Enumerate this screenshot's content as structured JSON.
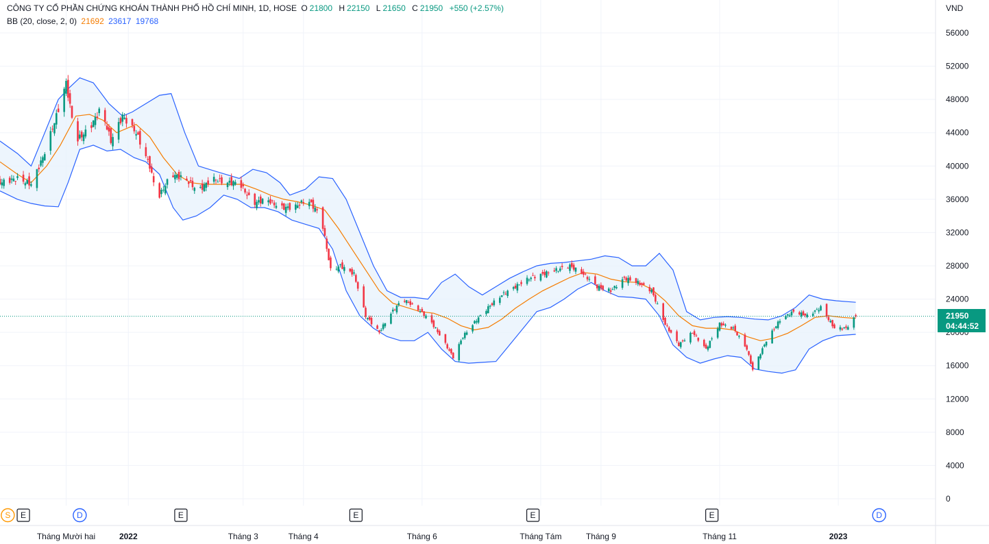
{
  "header": {
    "symbol_title": "CÔNG TY CỔ PHẦN CHỨNG KHOÁN THÀNH PHỐ HỒ CHÍ MINH, 1D, HOSE",
    "o_label": "O",
    "o_value": "21800",
    "h_label": "H",
    "h_value": "22150",
    "l_label": "L",
    "l_value": "21650",
    "c_label": "C",
    "c_value": "21950",
    "change": "+550 (+2.57%)"
  },
  "indicator": {
    "name": "BB (20, close, 2, 0)",
    "basis": "21692",
    "upper": "23617",
    "lower": "19768"
  },
  "price_scale": {
    "currency": "VND"
  },
  "last_price": {
    "price": "21950",
    "countdown": "04:44:52"
  },
  "colors": {
    "up": "#089981",
    "down": "#f23645",
    "basis": "#f57c00",
    "bands": "#2962ff",
    "band_fill": "#e8f3fd",
    "grid": "#f0f3fa",
    "event_earnings": "#131722",
    "event_dividend": "#2962ff",
    "event_split": "#ff9800"
  },
  "chart_data": {
    "type": "candlestick",
    "title": "CÔNG TY CỔ PHẦN CHỨNG KHOÁN THÀNH PHỐ HỒ CHÍ MINH, 1D, HOSE",
    "ylim": [
      0,
      57500
    ],
    "yticks": [
      0,
      4000,
      8000,
      12000,
      16000,
      20000,
      24000,
      28000,
      32000,
      36000,
      40000,
      44000,
      48000,
      52000,
      56000
    ],
    "grid": true,
    "x_range": [
      "2021-10-27",
      "2023-02-20"
    ],
    "time_labels": [
      {
        "date": "2021-11-30",
        "text": "Tháng Mười hai",
        "bold": false
      },
      {
        "date": "2022-01-01",
        "text": "2022",
        "bold": true
      },
      {
        "date": "2022-03-01",
        "text": "Tháng 3",
        "bold": false
      },
      {
        "date": "2022-04-01",
        "text": "Tháng 4",
        "bold": false
      },
      {
        "date": "2022-06-01",
        "text": "Tháng 6",
        "bold": false
      },
      {
        "date": "2022-08-01",
        "text": "Tháng Tám",
        "bold": false
      },
      {
        "date": "2022-09-01",
        "text": "Tháng 9",
        "bold": false
      },
      {
        "date": "2022-11-01",
        "text": "Tháng 11",
        "bold": false
      },
      {
        "date": "2023-01-01",
        "text": "2023",
        "bold": true
      }
    ],
    "close_series": {
      "name": "Close",
      "points": [
        [
          "2021-10-27",
          38000
        ],
        [
          "2021-11-05",
          38500
        ],
        [
          "2021-11-12",
          37800
        ],
        [
          "2021-11-18",
          41000
        ],
        [
          "2021-11-25",
          46000
        ],
        [
          "2021-11-30",
          50000
        ],
        [
          "2021-12-05",
          43000
        ],
        [
          "2021-12-12",
          44500
        ],
        [
          "2021-12-18",
          47000
        ],
        [
          "2021-12-23",
          43000
        ],
        [
          "2021-12-29",
          46000
        ],
        [
          "2022-01-05",
          44000
        ],
        [
          "2022-01-12",
          40000
        ],
        [
          "2022-01-16",
          36000
        ],
        [
          "2022-01-23",
          39000
        ],
        [
          "2022-01-30",
          38500
        ],
        [
          "2022-02-06",
          37000
        ],
        [
          "2022-02-13",
          38500
        ],
        [
          "2022-02-20",
          38000
        ],
        [
          "2022-02-27",
          38000
        ],
        [
          "2022-03-06",
          35500
        ],
        [
          "2022-03-13",
          36000
        ],
        [
          "2022-03-20",
          35000
        ],
        [
          "2022-03-27",
          35000
        ],
        [
          "2022-04-03",
          36000
        ],
        [
          "2022-04-10",
          34000
        ],
        [
          "2022-04-15",
          27500
        ],
        [
          "2022-04-20",
          28000
        ],
        [
          "2022-04-27",
          27000
        ],
        [
          "2022-05-03",
          22000
        ],
        [
          "2022-05-10",
          20000
        ],
        [
          "2022-05-15",
          22000
        ],
        [
          "2022-05-22",
          24000
        ],
        [
          "2022-05-29",
          23000
        ],
        [
          "2022-06-05",
          21500
        ],
        [
          "2022-06-12",
          19000
        ],
        [
          "2022-06-17",
          17000
        ],
        [
          "2022-06-22",
          19500
        ],
        [
          "2022-06-29",
          21500
        ],
        [
          "2022-07-05",
          23000
        ],
        [
          "2022-07-12",
          24500
        ],
        [
          "2022-07-19",
          25500
        ],
        [
          "2022-07-26",
          26500
        ],
        [
          "2022-08-02",
          27000
        ],
        [
          "2022-08-09",
          27500
        ],
        [
          "2022-08-16",
          28000
        ],
        [
          "2022-08-23",
          27000
        ],
        [
          "2022-08-30",
          25500
        ],
        [
          "2022-09-06",
          25000
        ],
        [
          "2022-09-13",
          26500
        ],
        [
          "2022-09-20",
          26000
        ],
        [
          "2022-09-27",
          25000
        ],
        [
          "2022-10-04",
          21000
        ],
        [
          "2022-10-11",
          18500
        ],
        [
          "2022-10-18",
          20000
        ],
        [
          "2022-10-25",
          18000
        ],
        [
          "2022-11-01",
          21000
        ],
        [
          "2022-11-08",
          20500
        ],
        [
          "2022-11-15",
          18000
        ],
        [
          "2022-11-18",
          15500
        ],
        [
          "2022-11-25",
          19000
        ],
        [
          "2022-12-02",
          21500
        ],
        [
          "2022-12-09",
          22500
        ],
        [
          "2022-12-16",
          22000
        ],
        [
          "2022-12-23",
          23000
        ],
        [
          "2022-12-30",
          20500
        ],
        [
          "2023-01-05",
          20500
        ],
        [
          "2023-01-10",
          21950
        ]
      ]
    },
    "basis_series": {
      "name": "BB basis",
      "points": [
        [
          "2021-10-27",
          40500
        ],
        [
          "2021-11-05",
          39000
        ],
        [
          "2021-11-12",
          38000
        ],
        [
          "2021-11-20",
          40000
        ],
        [
          "2021-11-27",
          42500
        ],
        [
          "2021-12-05",
          46000
        ],
        [
          "2021-12-12",
          46200
        ],
        [
          "2021-12-19",
          45500
        ],
        [
          "2021-12-26",
          44000
        ],
        [
          "2022-01-05",
          45000
        ],
        [
          "2022-01-12",
          43500
        ],
        [
          "2022-01-19",
          41000
        ],
        [
          "2022-01-26",
          39000
        ],
        [
          "2022-02-02",
          38000
        ],
        [
          "2022-02-09",
          37800
        ],
        [
          "2022-02-16",
          37800
        ],
        [
          "2022-03-01",
          37800
        ],
        [
          "2022-03-08",
          37200
        ],
        [
          "2022-03-15",
          36500
        ],
        [
          "2022-03-22",
          36000
        ],
        [
          "2022-03-29",
          35700
        ],
        [
          "2022-04-05",
          35300
        ],
        [
          "2022-04-12",
          34700
        ],
        [
          "2022-04-19",
          32500
        ],
        [
          "2022-04-26",
          30000
        ],
        [
          "2022-05-03",
          27500
        ],
        [
          "2022-05-10",
          25000
        ],
        [
          "2022-05-17",
          23500
        ],
        [
          "2022-05-24",
          23000
        ],
        [
          "2022-05-31",
          22500
        ],
        [
          "2022-06-07",
          22300
        ],
        [
          "2022-06-14",
          21700
        ],
        [
          "2022-06-21",
          20800
        ],
        [
          "2022-06-28",
          20300
        ],
        [
          "2022-07-05",
          20600
        ],
        [
          "2022-07-12",
          21600
        ],
        [
          "2022-07-19",
          22900
        ],
        [
          "2022-07-26",
          24000
        ],
        [
          "2022-08-02",
          25000
        ],
        [
          "2022-08-09",
          25800
        ],
        [
          "2022-08-16",
          26600
        ],
        [
          "2022-08-23",
          27200
        ],
        [
          "2022-08-30",
          27000
        ],
        [
          "2022-09-06",
          26400
        ],
        [
          "2022-09-13",
          26100
        ],
        [
          "2022-09-20",
          26000
        ],
        [
          "2022-09-27",
          25200
        ],
        [
          "2022-10-04",
          23800
        ],
        [
          "2022-10-11",
          22000
        ],
        [
          "2022-10-18",
          20800
        ],
        [
          "2022-10-25",
          20500
        ],
        [
          "2022-11-01",
          20500
        ],
        [
          "2022-11-08",
          20300
        ],
        [
          "2022-11-15",
          19500
        ],
        [
          "2022-11-22",
          19000
        ],
        [
          "2022-11-29",
          19300
        ],
        [
          "2022-12-06",
          19900
        ],
        [
          "2022-12-13",
          20800
        ],
        [
          "2022-12-20",
          21800
        ],
        [
          "2022-12-27",
          22000
        ],
        [
          "2023-01-03",
          21800
        ],
        [
          "2023-01-10",
          21692
        ]
      ]
    },
    "upper_series": {
      "name": "BB upper",
      "points": [
        [
          "2021-10-27",
          43000
        ],
        [
          "2021-11-05",
          41500
        ],
        [
          "2021-11-12",
          40000
        ],
        [
          "2021-11-19",
          44000
        ],
        [
          "2021-11-26",
          48000
        ],
        [
          "2021-12-02",
          49500
        ],
        [
          "2021-12-07",
          50600
        ],
        [
          "2021-12-14",
          50000
        ],
        [
          "2021-12-22",
          47500
        ],
        [
          "2021-12-29",
          46000
        ],
        [
          "2022-01-03",
          46500
        ],
        [
          "2022-01-10",
          47500
        ],
        [
          "2022-01-17",
          48500
        ],
        [
          "2022-01-23",
          48700
        ],
        [
          "2022-01-30",
          44000
        ],
        [
          "2022-02-06",
          40000
        ],
        [
          "2022-02-13",
          39500
        ],
        [
          "2022-02-20",
          39000
        ],
        [
          "2022-02-27",
          38500
        ],
        [
          "2022-03-06",
          39600
        ],
        [
          "2022-03-13",
          39200
        ],
        [
          "2022-03-20",
          38000
        ],
        [
          "2022-03-25",
          36500
        ],
        [
          "2022-04-02",
          37200
        ],
        [
          "2022-04-09",
          38700
        ],
        [
          "2022-04-16",
          38500
        ],
        [
          "2022-04-23",
          36000
        ],
        [
          "2022-04-30",
          32000
        ],
        [
          "2022-05-07",
          28000
        ],
        [
          "2022-05-14",
          25000
        ],
        [
          "2022-05-21",
          24200
        ],
        [
          "2022-05-28",
          24200
        ],
        [
          "2022-06-04",
          24000
        ],
        [
          "2022-06-11",
          26000
        ],
        [
          "2022-06-18",
          27000
        ],
        [
          "2022-06-25",
          25500
        ],
        [
          "2022-07-02",
          24500
        ],
        [
          "2022-07-09",
          25500
        ],
        [
          "2022-07-16",
          26500
        ],
        [
          "2022-07-23",
          27300
        ],
        [
          "2022-07-30",
          28000
        ],
        [
          "2022-08-06",
          28300
        ],
        [
          "2022-08-13",
          28400
        ],
        [
          "2022-08-20",
          28600
        ],
        [
          "2022-08-27",
          28800
        ],
        [
          "2022-09-03",
          29200
        ],
        [
          "2022-09-10",
          29000
        ],
        [
          "2022-09-17",
          28000
        ],
        [
          "2022-09-24",
          28000
        ],
        [
          "2022-10-01",
          29500
        ],
        [
          "2022-10-08",
          27500
        ],
        [
          "2022-10-15",
          22500
        ],
        [
          "2022-10-22",
          21500
        ],
        [
          "2022-10-29",
          21800
        ],
        [
          "2022-11-05",
          21900
        ],
        [
          "2022-11-12",
          21800
        ],
        [
          "2022-11-19",
          21600
        ],
        [
          "2022-11-26",
          21500
        ],
        [
          "2022-12-03",
          22000
        ],
        [
          "2022-12-10",
          23000
        ],
        [
          "2022-12-17",
          24500
        ],
        [
          "2022-12-24",
          24000
        ],
        [
          "2022-12-31",
          23800
        ],
        [
          "2023-01-10",
          23617
        ]
      ]
    },
    "lower_series": {
      "name": "BB lower",
      "points": [
        [
          "2021-10-27",
          37000
        ],
        [
          "2021-11-05",
          36000
        ],
        [
          "2021-11-12",
          35500
        ],
        [
          "2021-11-19",
          35200
        ],
        [
          "2021-11-26",
          35100
        ],
        [
          "2021-12-01",
          38000
        ],
        [
          "2021-12-07",
          42000
        ],
        [
          "2021-12-14",
          42500
        ],
        [
          "2021-12-21",
          41800
        ],
        [
          "2021-12-28",
          42000
        ],
        [
          "2022-01-04",
          41000
        ],
        [
          "2022-01-10",
          40500
        ],
        [
          "2022-01-17",
          39000
        ],
        [
          "2022-01-24",
          35000
        ],
        [
          "2022-01-29",
          33500
        ],
        [
          "2022-02-05",
          34000
        ],
        [
          "2022-02-12",
          35000
        ],
        [
          "2022-02-19",
          36500
        ],
        [
          "2022-02-26",
          36000
        ],
        [
          "2022-03-05",
          35000
        ],
        [
          "2022-03-12",
          35000
        ],
        [
          "2022-03-19",
          34500
        ],
        [
          "2022-03-26",
          33500
        ],
        [
          "2022-04-02",
          33000
        ],
        [
          "2022-04-09",
          32500
        ],
        [
          "2022-04-16",
          30000
        ],
        [
          "2022-04-23",
          25000
        ],
        [
          "2022-04-30",
          22000
        ],
        [
          "2022-05-07",
          20500
        ],
        [
          "2022-05-14",
          19500
        ],
        [
          "2022-05-21",
          19000
        ],
        [
          "2022-05-28",
          19000
        ],
        [
          "2022-06-04",
          20000
        ],
        [
          "2022-06-11",
          18000
        ],
        [
          "2022-06-18",
          16500
        ],
        [
          "2022-06-25",
          16300
        ],
        [
          "2022-07-02",
          16400
        ],
        [
          "2022-07-09",
          16500
        ],
        [
          "2022-07-16",
          18500
        ],
        [
          "2022-07-23",
          20500
        ],
        [
          "2022-07-30",
          22500
        ],
        [
          "2022-08-06",
          23000
        ],
        [
          "2022-08-13",
          24000
        ],
        [
          "2022-08-20",
          25200
        ],
        [
          "2022-08-27",
          26000
        ],
        [
          "2022-09-03",
          25000
        ],
        [
          "2022-09-10",
          24300
        ],
        [
          "2022-09-17",
          24200
        ],
        [
          "2022-09-24",
          24000
        ],
        [
          "2022-10-01",
          22000
        ],
        [
          "2022-10-08",
          18500
        ],
        [
          "2022-10-15",
          17000
        ],
        [
          "2022-10-22",
          16300
        ],
        [
          "2022-10-29",
          16800
        ],
        [
          "2022-11-05",
          17200
        ],
        [
          "2022-11-12",
          17000
        ],
        [
          "2022-11-19",
          15600
        ],
        [
          "2022-11-26",
          15300
        ],
        [
          "2022-12-03",
          15100
        ],
        [
          "2022-12-10",
          15500
        ],
        [
          "2022-12-17",
          18000
        ],
        [
          "2022-12-24",
          19000
        ],
        [
          "2022-12-31",
          19600
        ],
        [
          "2023-01-10",
          19768
        ]
      ]
    },
    "events": [
      {
        "date": "2021-10-31",
        "letter": "S",
        "kind": "split"
      },
      {
        "date": "2021-11-08",
        "letter": "E",
        "kind": "earnings"
      },
      {
        "date": "2021-12-07",
        "letter": "D",
        "kind": "dividend"
      },
      {
        "date": "2022-01-28",
        "letter": "E",
        "kind": "earnings"
      },
      {
        "date": "2022-04-28",
        "letter": "E",
        "kind": "earnings"
      },
      {
        "date": "2022-07-28",
        "letter": "E",
        "kind": "earnings"
      },
      {
        "date": "2022-10-28",
        "letter": "E",
        "kind": "earnings"
      },
      {
        "date": "2023-01-22",
        "letter": "D",
        "kind": "dividend"
      }
    ]
  }
}
